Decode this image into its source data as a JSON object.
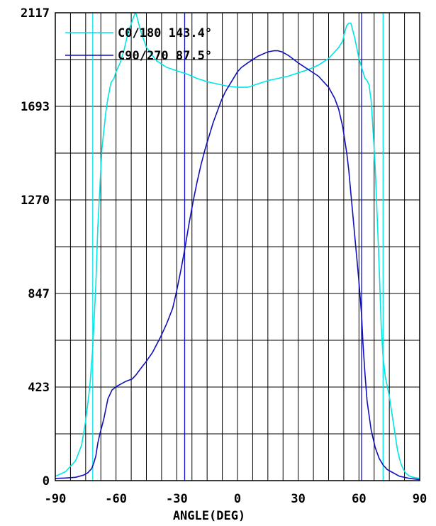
{
  "chart_data": {
    "type": "line",
    "title": "",
    "xlabel": "ANGLE(DEG)",
    "ylabel": "",
    "xlim": [
      -90,
      90
    ],
    "ylim": [
      0,
      2117
    ],
    "x_ticks": [
      -90,
      -60,
      -30,
      0,
      30,
      60,
      90
    ],
    "x_tick_labels": [
      "-90",
      "-60",
      "-30",
      "0",
      "30",
      "60",
      "90"
    ],
    "y_ticks": [
      0,
      423,
      847,
      1270,
      1693,
      2117
    ],
    "y_tick_labels": [
      "0",
      "423",
      "847",
      "1270",
      "1693",
      "2117"
    ],
    "grid": true,
    "legend_position": "top-left",
    "series": [
      {
        "name": "C0/180 143.4°",
        "color": "#00e5e5",
        "beam_limits": [
          -71.5,
          71.9
        ],
        "x": [
          -90,
          -85,
          -80,
          -77,
          -75,
          -73,
          -72,
          -71.5,
          -70,
          -69,
          -67,
          -65,
          -64,
          -62.5,
          -61,
          -60,
          -58,
          -56,
          -54,
          -52,
          -50.5,
          -50,
          -48,
          -45,
          -40,
          -35,
          -30,
          -25,
          -20,
          -15,
          -10,
          -5,
          0,
          5,
          10,
          15,
          20,
          25,
          30,
          35,
          40,
          45,
          50,
          52,
          53,
          54,
          55,
          56,
          58,
          60,
          62,
          63,
          64,
          65,
          66,
          67,
          68,
          69,
          70,
          71,
          71.9,
          73,
          75,
          77,
          79,
          80,
          81,
          82,
          83,
          85,
          87,
          90
        ],
        "y": [
          20,
          40,
          90,
          160,
          270,
          420,
          540,
          600,
          880,
          1150,
          1500,
          1670,
          1730,
          1800,
          1820,
          1850,
          1890,
          1950,
          2030,
          2080,
          2117,
          2110,
          2040,
          1960,
          1900,
          1870,
          1855,
          1840,
          1820,
          1805,
          1795,
          1785,
          1780,
          1780,
          1795,
          1810,
          1820,
          1830,
          1845,
          1860,
          1880,
          1910,
          1960,
          1990,
          2030,
          2060,
          2070,
          2070,
          2000,
          1910,
          1850,
          1820,
          1810,
          1790,
          1720,
          1580,
          1420,
          1200,
          960,
          700,
          560,
          470,
          380,
          260,
          140,
          100,
          70,
          50,
          35,
          20,
          15,
          10
        ]
      },
      {
        "name": "C90/270 87.5°",
        "color": "#1010bb",
        "beam_limits": [
          -26.1,
          61.3
        ],
        "x": [
          -90,
          -85,
          -80,
          -76,
          -74,
          -72,
          -71,
          -70,
          -69,
          -68,
          -66,
          -64,
          -62,
          -60,
          -57,
          -55,
          -52,
          -50,
          -48,
          -45,
          -42,
          -40,
          -38,
          -35,
          -32,
          -30,
          -28,
          -26,
          -24,
          -22,
          -20,
          -18,
          -16,
          -14,
          -12,
          -10,
          -8,
          -6,
          -4,
          -2,
          0,
          2,
          5,
          10,
          15,
          18,
          20,
          22,
          25,
          30,
          35,
          40,
          45,
          48,
          50,
          52,
          54,
          55,
          56,
          57,
          58,
          59,
          60,
          61.3,
          62,
          63,
          64,
          66,
          68,
          70,
          72,
          74,
          76,
          80,
          85,
          90
        ],
        "y": [
          10,
          12,
          15,
          25,
          35,
          55,
          80,
          110,
          170,
          210,
          280,
          370,
          410,
          425,
          440,
          450,
          460,
          480,
          505,
          540,
          580,
          615,
          650,
          710,
          780,
          860,
          950,
          1050,
          1160,
          1260,
          1350,
          1430,
          1500,
          1560,
          1620,
          1670,
          1720,
          1760,
          1790,
          1820,
          1850,
          1870,
          1890,
          1920,
          1940,
          1945,
          1945,
          1940,
          1925,
          1890,
          1860,
          1830,
          1780,
          1730,
          1680,
          1600,
          1480,
          1400,
          1300,
          1200,
          1100,
          1000,
          900,
          750,
          620,
          480,
          360,
          230,
          150,
          100,
          70,
          50,
          40,
          20,
          10,
          5
        ]
      }
    ]
  }
}
